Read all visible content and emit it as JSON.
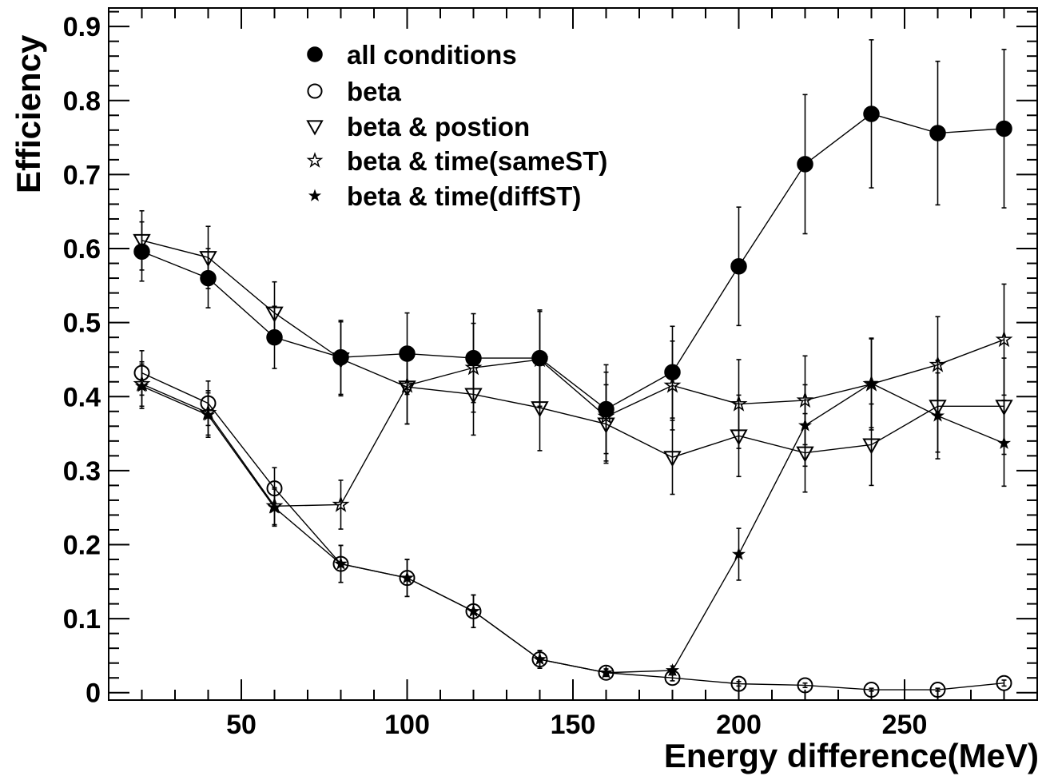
{
  "chart_data": {
    "type": "scatter",
    "title": "",
    "xlabel": "Energy difference(MeV)",
    "ylabel": "Efficiency",
    "xlim": [
      10,
      290
    ],
    "ylim": [
      -0.01,
      0.925
    ],
    "xticks": [
      50,
      100,
      150,
      200,
      250
    ],
    "xtick_labels": [
      "50",
      "100",
      "150",
      "200",
      "250"
    ],
    "yticks": [
      0,
      0.1,
      0.2,
      0.3,
      0.4,
      0.5,
      0.6,
      0.7,
      0.8,
      0.9
    ],
    "ytick_labels": [
      "0",
      "0.1",
      "0.2",
      "0.3",
      "0.4",
      "0.5",
      "0.6",
      "0.7",
      "0.8",
      "0.9"
    ],
    "grid": false,
    "legend_position": "top-center",
    "x": [
      20,
      40,
      60,
      80,
      100,
      120,
      140,
      160,
      180,
      200,
      220,
      240,
      260,
      280
    ],
    "series": [
      {
        "name": "all conditions",
        "marker": "filled-circle",
        "values": [
          0.596,
          0.56,
          0.48,
          0.453,
          0.458,
          0.452,
          0.452,
          0.383,
          0.433,
          0.576,
          0.714,
          0.782,
          0.756,
          0.762
        ],
        "errors": [
          0.04,
          0.04,
          0.042,
          0.05,
          0.055,
          0.06,
          0.065,
          0.06,
          0.062,
          0.08,
          0.094,
          0.1,
          0.097,
          0.107
        ]
      },
      {
        "name": "beta",
        "marker": "open-circle",
        "values": [
          0.432,
          0.391,
          0.276,
          0.174,
          0.155,
          0.11,
          0.045,
          0.027,
          0.02,
          0.012,
          0.01,
          0.004,
          0.004,
          0.013
        ],
        "errors": [
          0.03,
          0.03,
          0.028,
          0.025,
          0.025,
          0.022,
          0.012,
          0.005,
          0.004,
          0.003,
          0.003,
          0.002,
          0.002,
          0.004
        ]
      },
      {
        "name": "beta & postion",
        "marker": "open-triangle-down",
        "values": [
          0.611,
          0.588,
          0.513,
          0.451,
          0.413,
          0.403,
          0.385,
          0.363,
          0.318,
          0.347,
          0.324,
          0.335,
          0.387,
          0.387
        ],
        "errors": [
          0.04,
          0.042,
          0.042,
          0.05,
          0.05,
          0.055,
          0.058,
          0.053,
          0.05,
          0.055,
          0.053,
          0.055,
          0.062,
          0.065
        ]
      },
      {
        "name": "beta & time(sameST)",
        "marker": "open-star",
        "values": [
          0.417,
          0.378,
          0.252,
          0.254,
          0.415,
          0.439,
          0.45,
          0.373,
          0.415,
          0.39,
          0.395,
          0.417,
          0.443,
          0.477
        ],
        "errors": [
          0.03,
          0.03,
          0.025,
          0.033,
          0.052,
          0.06,
          0.065,
          0.06,
          0.06,
          0.06,
          0.06,
          0.062,
          0.065,
          0.075
        ]
      },
      {
        "name": "beta & time(diffST)",
        "marker": "filled-star",
        "values": [
          0.414,
          0.375,
          0.25,
          0.174,
          0.155,
          0.11,
          0.045,
          0.027,
          0.03,
          0.187,
          0.361,
          0.418,
          0.374,
          0.337
        ],
        "errors": [
          0.03,
          0.03,
          0.025,
          0.025,
          0.025,
          0.022,
          0.012,
          0.005,
          0.006,
          0.035,
          0.055,
          0.06,
          0.058,
          0.058
        ]
      }
    ]
  }
}
